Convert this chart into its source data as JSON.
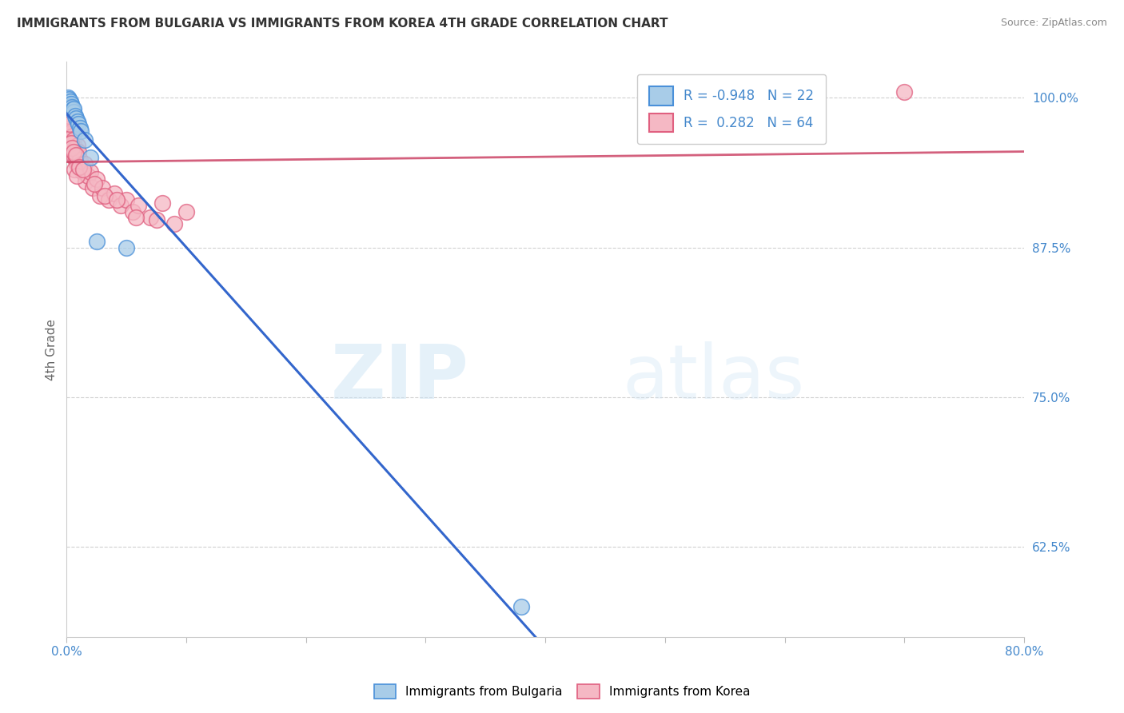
{
  "title": "IMMIGRANTS FROM BULGARIA VS IMMIGRANTS FROM KOREA 4TH GRADE CORRELATION CHART",
  "source": "Source: ZipAtlas.com",
  "ylabel": "4th Grade",
  "legend_blue": {
    "R": -0.948,
    "N": 22,
    "label": "Immigrants from Bulgaria"
  },
  "legend_pink": {
    "R": 0.282,
    "N": 64,
    "label": "Immigrants from Korea"
  },
  "watermark_zip": "ZIP",
  "watermark_atlas": "atlas",
  "bg_color": "#ffffff",
  "blue_scatter_color": "#a8cce8",
  "blue_edge_color": "#4a90d9",
  "pink_scatter_color": "#f5b8c4",
  "pink_edge_color": "#e06080",
  "trend_blue_color": "#3366cc",
  "trend_pink_color": "#cc4466",
  "blue_scatter": {
    "x": [
      0.1,
      0.15,
      0.2,
      0.25,
      0.3,
      0.35,
      0.4,
      0.45,
      0.5,
      0.55,
      0.6,
      0.7,
      0.8,
      0.9,
      1.0,
      1.1,
      1.2,
      1.5,
      2.0,
      2.5,
      5.0,
      38.0
    ],
    "y": [
      100.0,
      99.8,
      99.9,
      99.5,
      99.7,
      99.3,
      99.5,
      99.2,
      99.0,
      98.8,
      99.1,
      98.5,
      98.3,
      98.0,
      97.8,
      97.5,
      97.2,
      96.5,
      95.0,
      88.0,
      87.5,
      57.5
    ]
  },
  "pink_scatter": {
    "x": [
      0.05,
      0.1,
      0.12,
      0.15,
      0.18,
      0.2,
      0.22,
      0.25,
      0.28,
      0.3,
      0.32,
      0.35,
      0.4,
      0.42,
      0.45,
      0.5,
      0.55,
      0.6,
      0.65,
      0.7,
      0.75,
      0.8,
      0.85,
      0.9,
      0.95,
      1.0,
      1.1,
      1.2,
      1.3,
      1.5,
      1.6,
      1.8,
      2.0,
      2.2,
      2.5,
      2.8,
      3.0,
      3.5,
      4.0,
      4.5,
      5.0,
      5.5,
      6.0,
      7.0,
      8.0,
      9.0,
      10.0,
      0.08,
      0.16,
      0.24,
      0.38,
      0.48,
      0.58,
      0.68,
      0.78,
      0.88,
      1.05,
      1.4,
      2.3,
      3.2,
      4.2,
      5.8,
      7.5,
      70.0
    ],
    "y": [
      99.2,
      98.5,
      98.8,
      98.2,
      97.5,
      98.0,
      97.8,
      97.2,
      96.8,
      97.5,
      96.5,
      97.0,
      96.5,
      97.2,
      96.0,
      96.8,
      95.5,
      96.5,
      95.0,
      95.8,
      94.8,
      95.2,
      94.5,
      96.0,
      94.2,
      95.5,
      94.8,
      94.5,
      93.8,
      94.5,
      93.0,
      93.5,
      93.8,
      92.5,
      93.2,
      91.8,
      92.5,
      91.5,
      92.0,
      91.0,
      91.5,
      90.5,
      91.0,
      90.0,
      91.2,
      89.5,
      90.5,
      99.0,
      98.5,
      97.8,
      96.2,
      95.8,
      95.5,
      94.0,
      95.2,
      93.5,
      94.2,
      94.0,
      92.8,
      91.8,
      91.5,
      90.0,
      89.8,
      100.5
    ]
  },
  "xlim": [
    0,
    80
  ],
  "ylim": [
    55,
    103
  ],
  "right_yticks": [
    62.5,
    75.0,
    87.5,
    100.0
  ],
  "grid_color": "#cccccc",
  "title_color": "#333333",
  "axis_label_color": "#666666",
  "tick_color": "#4488cc"
}
